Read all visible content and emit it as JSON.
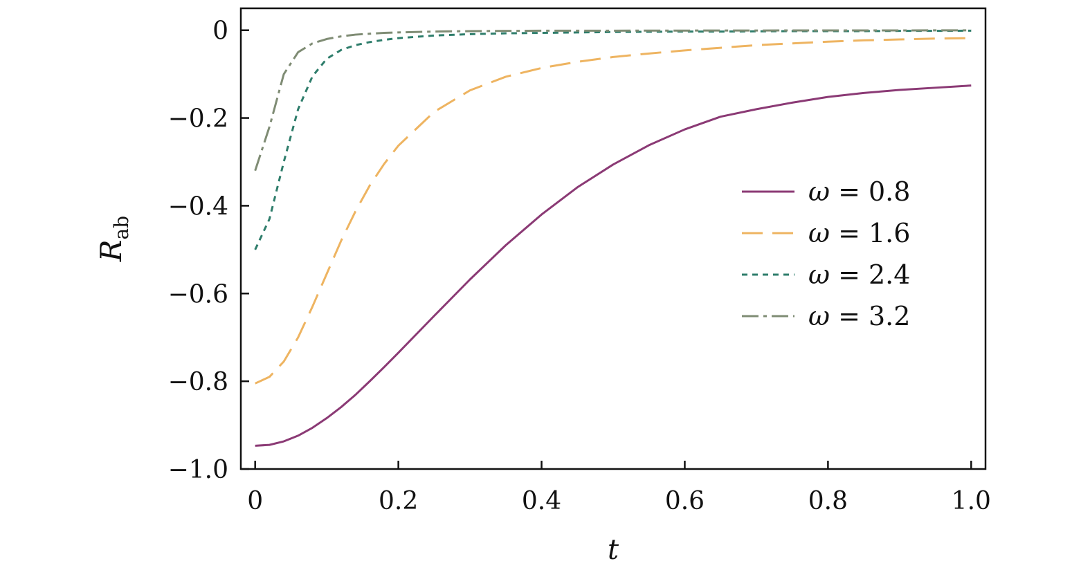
{
  "chart_data": {
    "type": "line",
    "title": "",
    "xlabel": "t",
    "ylabel": {
      "main": "R",
      "sub": "ab"
    },
    "xlim": [
      -0.02,
      1.02
    ],
    "ylim": [
      -1.0,
      0.05
    ],
    "xticks": [
      0,
      0.2,
      0.4,
      0.6,
      0.8,
      1.0
    ],
    "xtick_labels": [
      "0",
      "0.2",
      "0.4",
      "0.6",
      "0.8",
      "1.0"
    ],
    "yticks": [
      0,
      -0.2,
      -0.4,
      -0.6,
      -0.8,
      -1.0
    ],
    "ytick_labels": [
      "0",
      "−0.2",
      "−0.4",
      "−0.6",
      "−0.8",
      "−1.0"
    ],
    "grid": false,
    "legend_position": "right",
    "x": [
      0,
      0.02,
      0.04,
      0.06,
      0.08,
      0.1,
      0.12,
      0.14,
      0.16,
      0.18,
      0.2,
      0.25,
      0.3,
      0.35,
      0.4,
      0.45,
      0.5,
      0.55,
      0.6,
      0.65,
      0.7,
      0.75,
      0.8,
      0.85,
      0.9,
      0.95,
      1.0
    ],
    "series": [
      {
        "name": "ω = 0.8",
        "symbol": "ω",
        "value_label": "0.8",
        "color": "#8b3a75",
        "dash": "",
        "values": [
          -0.947,
          -0.945,
          -0.937,
          -0.924,
          -0.906,
          -0.884,
          -0.859,
          -0.831,
          -0.8,
          -0.768,
          -0.735,
          -0.651,
          -0.568,
          -0.49,
          -0.42,
          -0.358,
          -0.306,
          -0.262,
          -0.226,
          -0.197,
          -0.18,
          -0.165,
          -0.152,
          -0.143,
          -0.136,
          -0.131,
          -0.126
        ]
      },
      {
        "name": "ω = 1.6",
        "symbol": "ω",
        "value_label": "1.6",
        "color": "#eeb461",
        "dash": "30,14",
        "values": [
          -0.805,
          -0.79,
          -0.755,
          -0.7,
          -0.63,
          -0.555,
          -0.48,
          -0.413,
          -0.354,
          -0.305,
          -0.263,
          -0.186,
          -0.137,
          -0.106,
          -0.086,
          -0.072,
          -0.061,
          -0.053,
          -0.046,
          -0.04,
          -0.034,
          -0.03,
          -0.026,
          -0.023,
          -0.021,
          -0.019,
          -0.018
        ]
      },
      {
        "name": "ω = 2.4",
        "symbol": "ω",
        "value_label": "2.4",
        "color": "#2e7d6b",
        "dash": "8,7",
        "values": [
          -0.5,
          -0.43,
          -0.3,
          -0.18,
          -0.105,
          -0.065,
          -0.045,
          -0.034,
          -0.027,
          -0.022,
          -0.018,
          -0.012,
          -0.009,
          -0.007,
          -0.006,
          -0.005,
          -0.004,
          -0.0035,
          -0.003,
          -0.003,
          -0.0025,
          -0.002,
          -0.002,
          -0.002,
          -0.0015,
          -0.0015,
          -0.001
        ]
      },
      {
        "name": "ω = 3.2",
        "symbol": "ω",
        "value_label": "3.2",
        "color": "#7f8c74",
        "dash": "24,7,5,7",
        "values": [
          -0.32,
          -0.22,
          -0.1,
          -0.05,
          -0.03,
          -0.02,
          -0.014,
          -0.01,
          -0.008,
          -0.006,
          -0.005,
          -0.003,
          -0.002,
          -0.0015,
          -0.001,
          -0.001,
          -0.001,
          -0.0008,
          -0.0008,
          -0.0006,
          -0.0006,
          -0.0005,
          -0.0005,
          -0.0004,
          -0.0004,
          -0.0003,
          -0.0003
        ]
      }
    ]
  }
}
